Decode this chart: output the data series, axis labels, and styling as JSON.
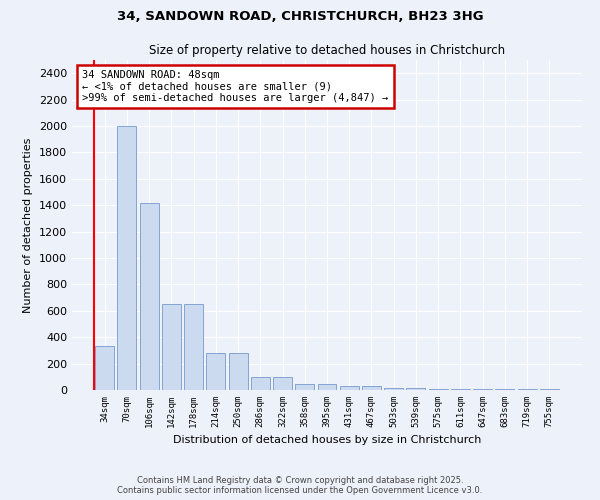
{
  "title1": "34, SANDOWN ROAD, CHRISTCHURCH, BH23 3HG",
  "title2": "Size of property relative to detached houses in Christchurch",
  "xlabel": "Distribution of detached houses by size in Christchurch",
  "ylabel": "Number of detached properties",
  "categories": [
    "34sqm",
    "70sqm",
    "106sqm",
    "142sqm",
    "178sqm",
    "214sqm",
    "250sqm",
    "286sqm",
    "322sqm",
    "358sqm",
    "395sqm",
    "431sqm",
    "467sqm",
    "503sqm",
    "539sqm",
    "575sqm",
    "611sqm",
    "647sqm",
    "683sqm",
    "719sqm",
    "755sqm"
  ],
  "values": [
    330,
    2000,
    1415,
    650,
    650,
    280,
    280,
    100,
    100,
    45,
    45,
    28,
    28,
    15,
    15,
    10,
    8,
    5,
    5,
    5,
    5
  ],
  "bar_color": "#ccdaf0",
  "bar_edge_color": "#7799cc",
  "annotation_text": "34 SANDOWN ROAD: 48sqm\n← <1% of detached houses are smaller (9)\n>99% of semi-detached houses are larger (4,847) →",
  "annotation_box_color": "#ffffff",
  "annotation_box_edge": "#cc0000",
  "ylim": [
    0,
    2500
  ],
  "yticks": [
    0,
    200,
    400,
    600,
    800,
    1000,
    1200,
    1400,
    1600,
    1800,
    2000,
    2200,
    2400
  ],
  "footer1": "Contains HM Land Registry data © Crown copyright and database right 2025.",
  "footer2": "Contains public sector information licensed under the Open Government Licence v3.0.",
  "bg_color": "#edf1f9",
  "plot_bg_color": "#edf1f9"
}
